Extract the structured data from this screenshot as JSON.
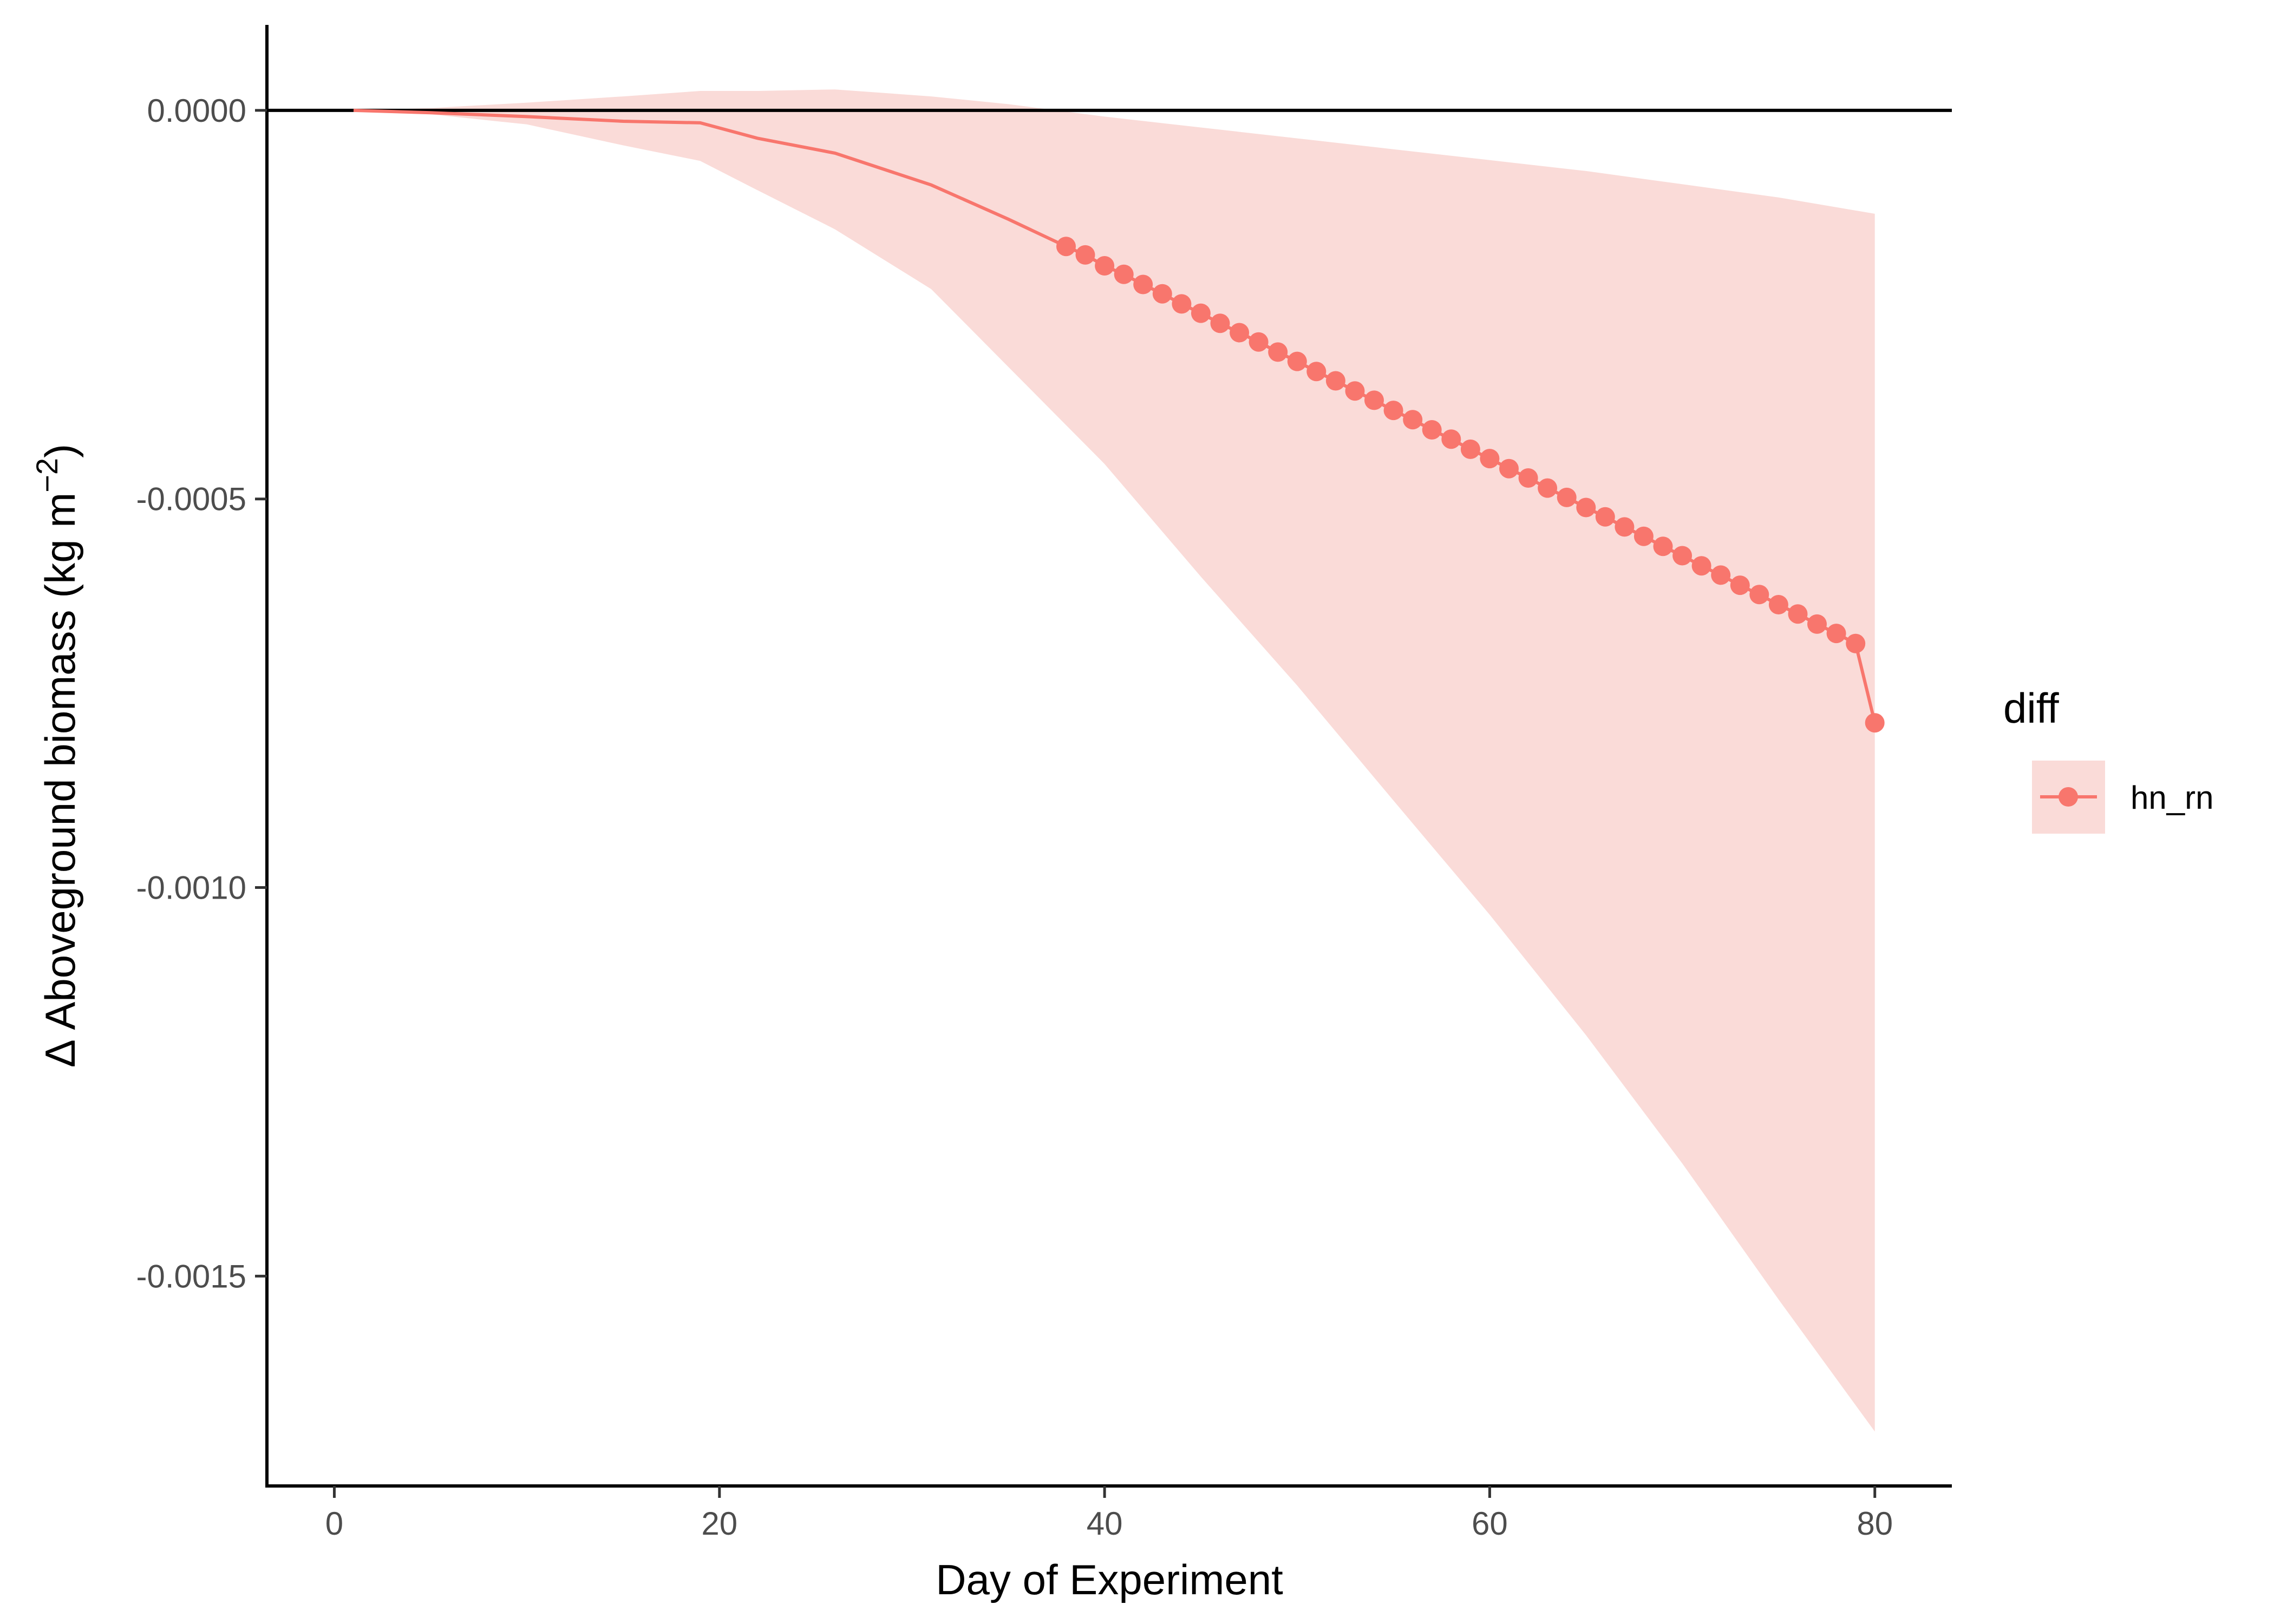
{
  "chart_data": {
    "type": "line",
    "xlabel": "Day of Experiment",
    "ylabel": "Δ Aboveground biomass (kg m",
    "ylabel_superscript": "−2",
    "ylabel_suffix": ")",
    "xlim": [
      -3.5,
      84
    ],
    "ylim": [
      -0.00177,
      0.00011
    ],
    "x_ticks": [
      0,
      20,
      40,
      60,
      80
    ],
    "x_tick_labels": [
      "0",
      "20",
      "40",
      "60",
      "80"
    ],
    "y_ticks": [
      0,
      -0.0005,
      -0.001,
      -0.0015
    ],
    "y_tick_labels": [
      "0.0000",
      "-0.0005",
      "-0.0010",
      "-0.0015"
    ],
    "reference_line_y": 0,
    "grid": false,
    "legend": {
      "title": "diff",
      "placement": "right",
      "entries": [
        "hn_rn"
      ]
    },
    "series": [
      {
        "name": "hn_rn",
        "color": "#F8766D",
        "ribbon_color": "#FADBD8",
        "line": {
          "x": [
            1,
            5,
            10,
            15,
            19,
            22,
            26,
            31,
            35,
            38
          ],
          "y": [
            0,
            -3e-06,
            -8e-06,
            -1.4e-05,
            -1.6e-05,
            -3.6e-05,
            -5.5e-05,
            -9.6e-05,
            -0.00014,
            -0.000175
          ]
        },
        "points": {
          "x": [
            38,
            39,
            40,
            41,
            42,
            43,
            44,
            45,
            46,
            47,
            48,
            49,
            50,
            51,
            52,
            53,
            54,
            55,
            56,
            57,
            58,
            59,
            60,
            61,
            62,
            63,
            64,
            65,
            66,
            67,
            68,
            69,
            70,
            71,
            72,
            73,
            74,
            75,
            76,
            77,
            78,
            79,
            80
          ],
          "y": [
            -0.000175,
            -0.000186,
            -0.0002,
            -0.000211,
            -0.000224,
            -0.000236,
            -0.000249,
            -0.000261,
            -0.000274,
            -0.000286,
            -0.000298,
            -0.000311,
            -0.000323,
            -0.000336,
            -0.000348,
            -0.000361,
            -0.000373,
            -0.000386,
            -0.000398,
            -0.000411,
            -0.000423,
            -0.000436,
            -0.000448,
            -0.000461,
            -0.000473,
            -0.000486,
            -0.000498,
            -0.000511,
            -0.000523,
            -0.000536,
            -0.000548,
            -0.000561,
            -0.000573,
            -0.000586,
            -0.000598,
            -0.000611,
            -0.000623,
            -0.000636,
            -0.000648,
            -0.000661,
            -0.000673,
            -0.000686,
            -0.000788
          ]
        },
        "ribbon": {
          "x": [
            1,
            5,
            10,
            15,
            19,
            22,
            26,
            31,
            35,
            40,
            45,
            50,
            55,
            60,
            65,
            70,
            75,
            80
          ],
          "upper": [
            0,
            3e-06,
            1e-05,
            1.8e-05,
            2.5e-05,
            2.5e-05,
            2.7e-05,
            1.8e-05,
            8e-06,
            -8e-06,
            -2.2e-05,
            -3.6e-05,
            -5e-05,
            -6.4e-05,
            -7.8e-05,
            -9.5e-05,
            -0.000112,
            -0.000133
          ],
          "lower": [
            0,
            -5e-06,
            -1.8e-05,
            -4.5e-05,
            -6.5e-05,
            -0.000103,
            -0.000153,
            -0.00023,
            -0.00033,
            -0.000455,
            -0.0006,
            -0.00074,
            -0.000888,
            -0.001035,
            -0.00119,
            -0.001355,
            -0.00153,
            -0.0017
          ]
        }
      }
    ]
  }
}
